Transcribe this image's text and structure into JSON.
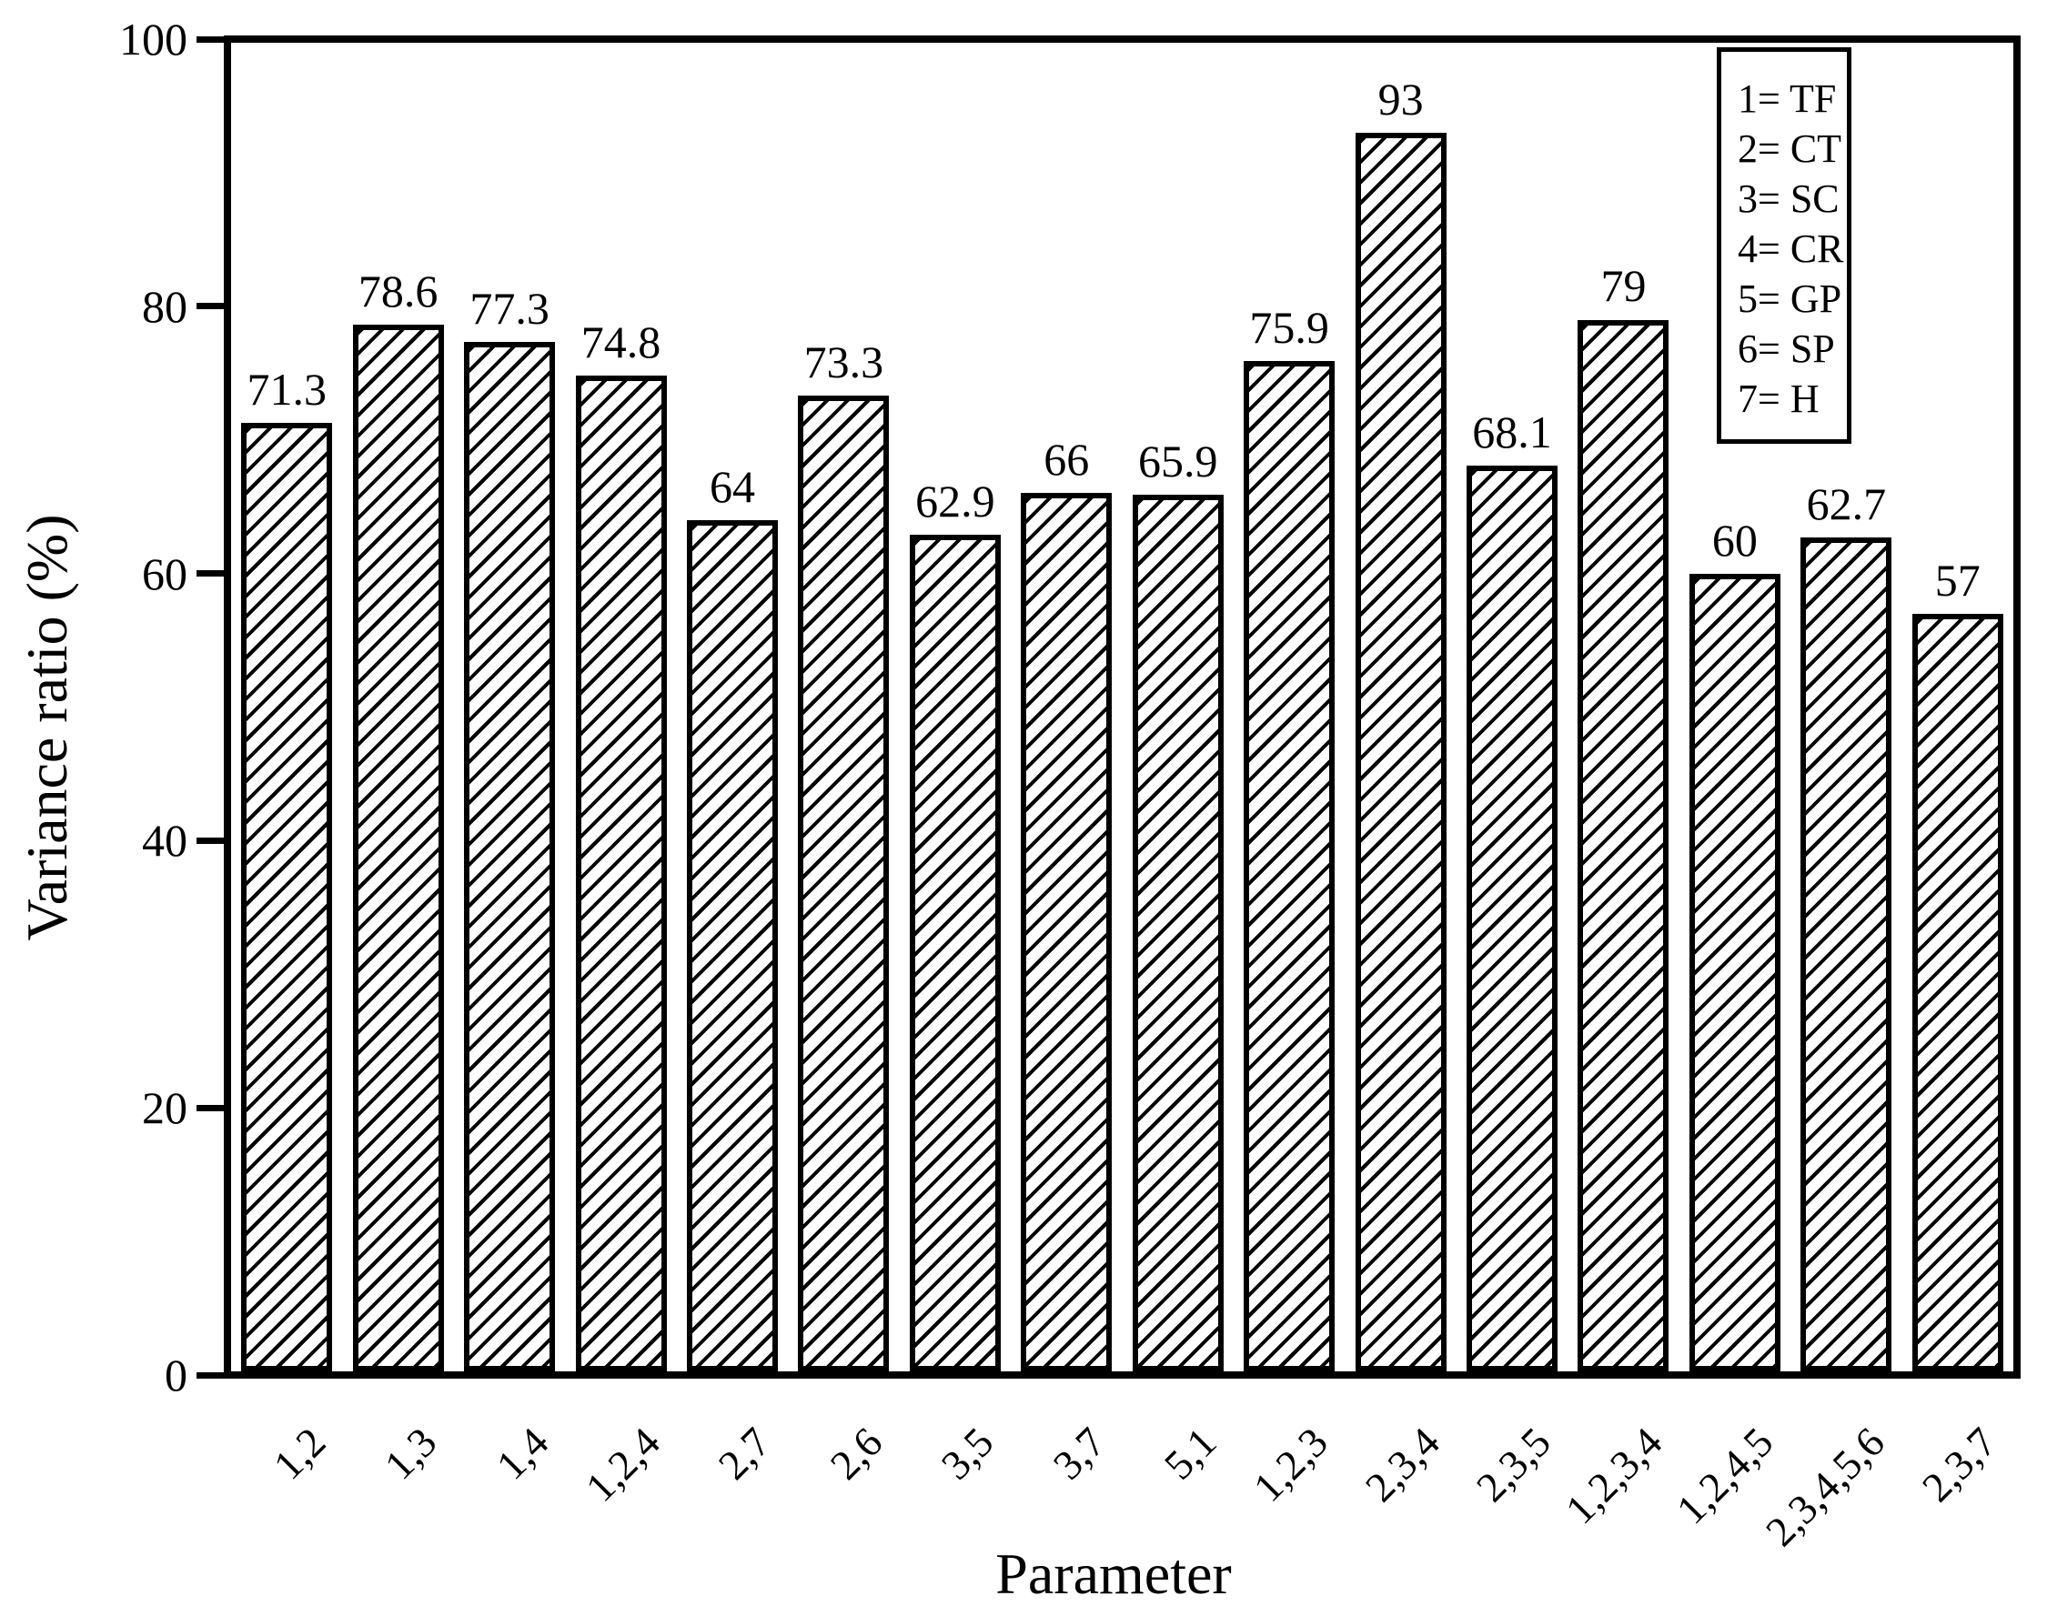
{
  "figure": {
    "background_color": "#ffffff",
    "ink_color": "#000000"
  },
  "chart_data": {
    "type": "bar",
    "title": "",
    "xlabel": "Parameter",
    "ylabel": "Variance ratio (%)",
    "ylim": [
      0,
      100
    ],
    "yticks": [
      0,
      20,
      40,
      60,
      80,
      100
    ],
    "grid": false,
    "bar_fill": "black-diagonal-hatch-on-white",
    "categories": [
      "1,2",
      "1,3",
      "1,4",
      "1,2,4",
      "2,7",
      "2,6",
      "3,5",
      "3,7",
      "5,1",
      "1,2,3",
      "2,3,4",
      "2,3,5",
      "1,2,3,4",
      "1,2,4,5",
      "2,3,4,5,6",
      "2,3,7"
    ],
    "values": [
      71.3,
      78.6,
      77.3,
      74.8,
      64,
      73.3,
      62.9,
      66,
      65.9,
      75.9,
      93,
      68.1,
      79,
      60,
      62.7,
      57
    ],
    "value_labels": [
      "71.3",
      "78.6",
      "77.3",
      "74.8",
      "64",
      "73.3",
      "62.9",
      "66",
      "65.9",
      "75.9",
      "93",
      "68.1",
      "79",
      "60",
      "62.7",
      "57"
    ],
    "legend": {
      "position": "top-right",
      "items": [
        "1= TF",
        "2= CT",
        "3= SC",
        "4= CR",
        "5= GP",
        "6= SP",
        "7= H"
      ]
    }
  }
}
